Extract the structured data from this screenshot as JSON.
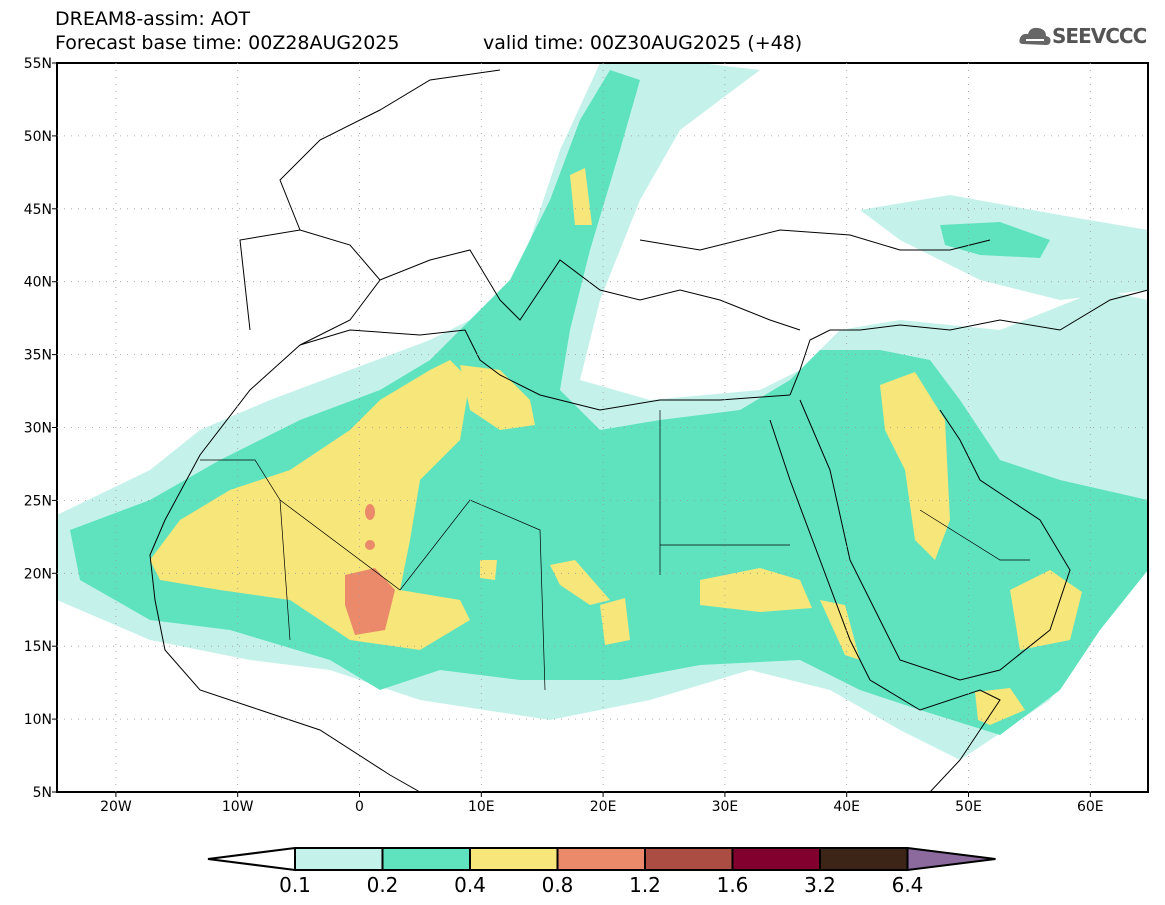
{
  "title": "DREAM8-assim: AOT",
  "base_time": "Forecast base time: 00Z28AUG2025",
  "valid_time": "valid time: 00Z30AUG2025 (+48)",
  "logo": "SEEVCCC",
  "lat_labels": [
    {
      "v": 55,
      "t": "55N"
    },
    {
      "v": 50,
      "t": "50N"
    },
    {
      "v": 45,
      "t": "45N"
    },
    {
      "v": 40,
      "t": "40N"
    },
    {
      "v": 35,
      "t": "35N"
    },
    {
      "v": 30,
      "t": "30N"
    },
    {
      "v": 25,
      "t": "25N"
    },
    {
      "v": 20,
      "t": "20N"
    },
    {
      "v": 15,
      "t": "15N"
    },
    {
      "v": 10,
      "t": "10N"
    },
    {
      "v": 5,
      "t": "5N"
    }
  ],
  "lon_labels": [
    {
      "v": -20,
      "t": "20W"
    },
    {
      "v": -10,
      "t": "10W"
    },
    {
      "v": 0,
      "t": "0"
    },
    {
      "v": 10,
      "t": "10E"
    },
    {
      "v": 20,
      "t": "20E"
    },
    {
      "v": 30,
      "t": "30E"
    },
    {
      "v": 40,
      "t": "40E"
    },
    {
      "v": 50,
      "t": "50E"
    },
    {
      "v": 60,
      "t": "60E"
    }
  ],
  "colorbar": {
    "levels": [
      "0.1",
      "0.2",
      "0.4",
      "0.8",
      "1.2",
      "1.6",
      "3.2",
      "6.4"
    ],
    "colors": [
      "#ffffff",
      "#c4f2ea",
      "#5fe3bf",
      "#f7e679",
      "#ea8a6a",
      "#ab4d43",
      "#82002d",
      "#3c2517",
      "#8c6a9e"
    ]
  }
}
